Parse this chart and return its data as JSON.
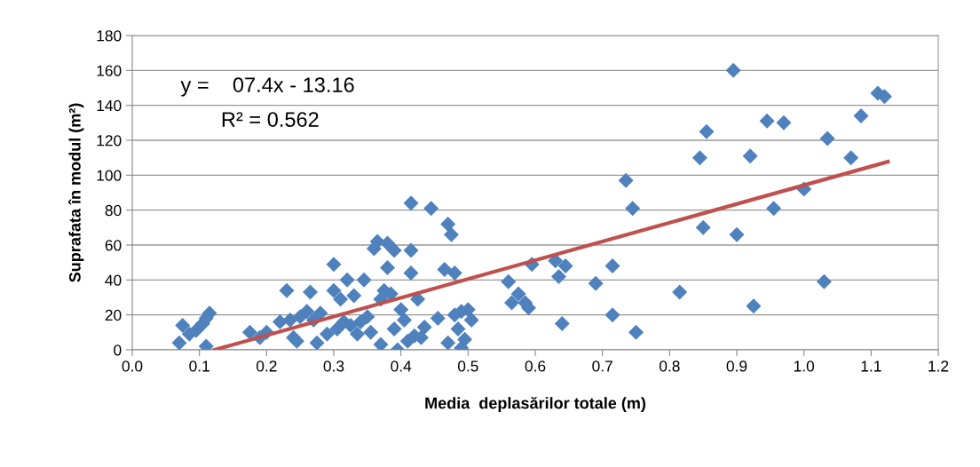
{
  "chart_data": {
    "type": "scatter",
    "xlabel": "Media  deplasărilor totale (m)",
    "ylabel": "Suprafata în modul (m²)",
    "xlim": [
      0.0,
      1.2
    ],
    "xticks": [
      {
        "value": 0,
        "label": "0.0"
      },
      0.1,
      0.2,
      0.3,
      0.4,
      0.5,
      0.6,
      0.7,
      0.8,
      0.9,
      {
        "value": 1,
        "label": "1.0"
      },
      1.1,
      1.2
    ],
    "ylim": [
      0,
      180
    ],
    "yticks": [
      0,
      20,
      40,
      60,
      80,
      100,
      120,
      140,
      160,
      180
    ],
    "grid": "y",
    "legend": false,
    "marker": "diamond",
    "annotations": [
      "y =    07.4x - 13.16",
      "R² = 0.562"
    ],
    "series": [
      {
        "color": "#4f81bd",
        "x": [
          0.07,
          0.075,
          0.085,
          0.095,
          0.105,
          0.11,
          0.115,
          0.11,
          0.175,
          0.19,
          0.2,
          0.22,
          0.23,
          0.235,
          0.24,
          0.245,
          0.25,
          0.26,
          0.265,
          0.27,
          0.275,
          0.28,
          0.29,
          0.3,
          0.3,
          0.305,
          0.31,
          0.315,
          0.32,
          0.325,
          0.33,
          0.335,
          0.34,
          0.345,
          0.35,
          0.355,
          0.36,
          0.365,
          0.37,
          0.37,
          0.375,
          0.38,
          0.38,
          0.385,
          0.39,
          0.39,
          0.395,
          0.4,
          0.405,
          0.41,
          0.415,
          0.415,
          0.415,
          0.42,
          0.425,
          0.43,
          0.435,
          0.445,
          0.455,
          0.465,
          0.47,
          0.47,
          0.475,
          0.48,
          0.48,
          0.485,
          0.49,
          0.49,
          0.495,
          0.5,
          0.505,
          0.56,
          0.565,
          0.575,
          0.585,
          0.59,
          0.595,
          0.63,
          0.635,
          0.64,
          0.645,
          0.69,
          0.715,
          0.715,
          0.735,
          0.745,
          0.75,
          0.815,
          0.845,
          0.85,
          0.855,
          0.895,
          0.9,
          0.92,
          0.925,
          0.945,
          0.955,
          0.97,
          1.0,
          1.03,
          1.035,
          1.07,
          1.085,
          1.11,
          1.12
        ],
        "values": [
          4,
          14,
          9,
          11,
          15,
          18,
          21,
          2,
          10,
          7,
          10,
          16,
          34,
          17,
          7,
          5,
          19,
          22,
          33,
          17,
          4,
          21,
          9,
          49,
          34,
          12,
          29,
          16,
          40,
          14,
          31,
          9,
          16,
          40,
          19,
          10,
          58,
          62,
          29,
          3,
          34,
          47,
          61,
          32,
          12,
          57,
          0,
          23,
          17,
          5,
          57,
          44,
          84,
          8,
          29,
          7,
          13,
          81,
          18,
          46,
          72,
          4,
          66,
          20,
          44,
          12,
          1,
          22,
          6,
          23,
          17,
          39,
          27,
          32,
          27,
          24,
          49,
          51,
          42,
          15,
          48,
          38,
          48,
          20,
          97,
          81,
          10,
          33,
          110,
          70,
          125,
          160,
          66,
          111,
          25,
          131,
          81,
          130,
          92,
          39,
          121,
          110,
          134,
          147,
          145
        ]
      },
      {
        "type": "line",
        "color": "#c0504d",
        "marker": "none",
        "x": [
          0.1225,
          1.125
        ],
        "values": [
          0,
          107.7
        ]
      }
    ]
  }
}
